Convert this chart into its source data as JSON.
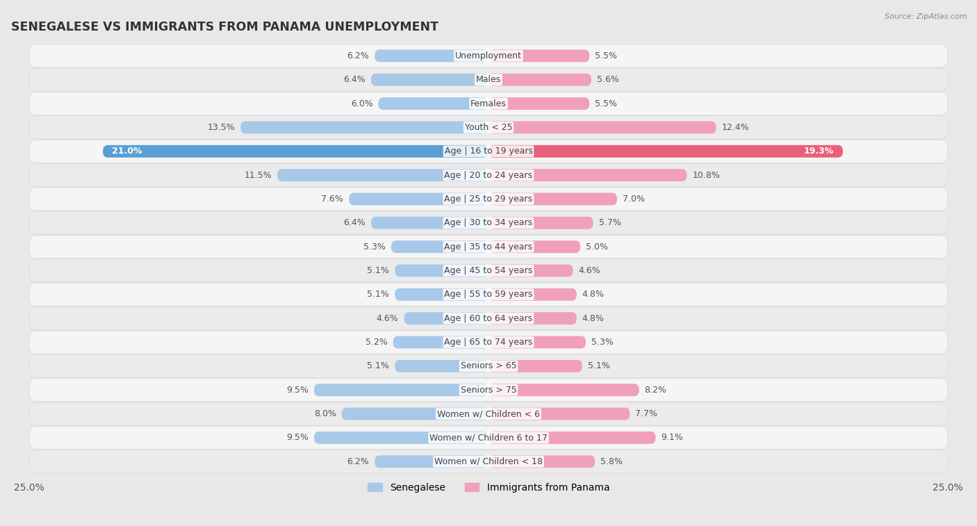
{
  "title": "SENEGALESE VS IMMIGRANTS FROM PANAMA UNEMPLOYMENT",
  "source": "Source: ZipAtlas.com",
  "categories": [
    "Unemployment",
    "Males",
    "Females",
    "Youth < 25",
    "Age | 16 to 19 years",
    "Age | 20 to 24 years",
    "Age | 25 to 29 years",
    "Age | 30 to 34 years",
    "Age | 35 to 44 years",
    "Age | 45 to 54 years",
    "Age | 55 to 59 years",
    "Age | 60 to 64 years",
    "Age | 65 to 74 years",
    "Seniors > 65",
    "Seniors > 75",
    "Women w/ Children < 6",
    "Women w/ Children 6 to 17",
    "Women w/ Children < 18"
  ],
  "senegalese": [
    6.2,
    6.4,
    6.0,
    13.5,
    21.0,
    11.5,
    7.6,
    6.4,
    5.3,
    5.1,
    5.1,
    4.6,
    5.2,
    5.1,
    9.5,
    8.0,
    9.5,
    6.2
  ],
  "panama": [
    5.5,
    5.6,
    5.5,
    12.4,
    19.3,
    10.8,
    7.0,
    5.7,
    5.0,
    4.6,
    4.8,
    4.8,
    5.3,
    5.1,
    8.2,
    7.7,
    9.1,
    5.8
  ],
  "senegalese_color": "#a8c8e8",
  "panama_color": "#f0a0b8",
  "highlight_senegalese_color": "#5a9fd4",
  "highlight_panama_color": "#e8607a",
  "row_color_even": "#f5f5f5",
  "row_color_odd": "#ebebeb",
  "row_border_color": "#d8d8d8",
  "background_color": "#e8e8e8",
  "max_val": 25.0,
  "label_fontsize": 9.0,
  "category_fontsize": 9.0,
  "title_fontsize": 12.5,
  "legend_labels": [
    "Senegalese",
    "Immigrants from Panama"
  ]
}
